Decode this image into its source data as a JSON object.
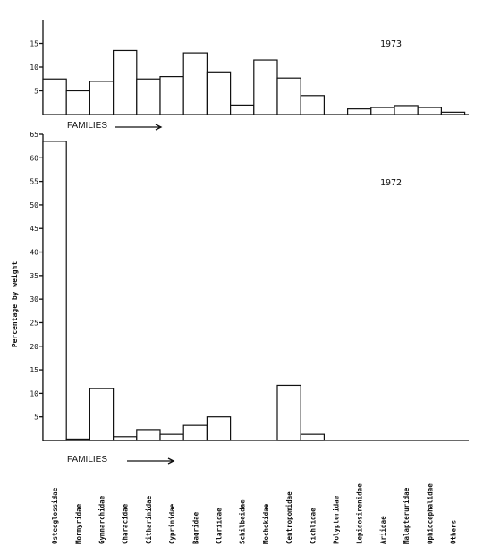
{
  "chart_data": [
    {
      "type": "bar",
      "title": "1973",
      "xlabel": "FAMILIES",
      "ylabel": "",
      "ylim": [
        0,
        20
      ],
      "yticks": [
        5,
        10,
        15
      ],
      "grid": false,
      "categories": [
        "Osteoglossidae",
        "Mormyridae",
        "Gymnarchidae",
        "Characidae",
        "Citharinidae",
        "Cyprinidae",
        "Bagridae",
        "Clariidae",
        "Schilbeidae",
        "Mochokidae",
        "Centropomidae",
        "Cichlidae",
        "Polypteridae",
        "Lepidosirenidae",
        "Ariidae",
        "Malapteruridae",
        "Ophiocephalidae",
        "Others"
      ],
      "values": [
        7.5,
        5,
        7,
        13.5,
        7.5,
        8,
        13,
        9,
        2,
        11.5,
        7.7,
        4,
        0,
        1.2,
        1.5,
        1.9,
        1.5,
        0.5
      ]
    },
    {
      "type": "bar",
      "title": "1972",
      "xlabel": "FAMILIES",
      "ylabel": "Percentage by weight",
      "ylim": [
        0,
        65
      ],
      "yticks": [
        5,
        10,
        15,
        20,
        25,
        30,
        35,
        40,
        45,
        50,
        55,
        60,
        65
      ],
      "grid": false,
      "categories": [
        "Osteoglossidae",
        "Mormyridae",
        "Gymnarchidae",
        "Characidae",
        "Citharinidae",
        "Cyprinidae",
        "Bagridae",
        "Clariidae",
        "Schilbeidae",
        "Mochokidae",
        "Centropomidae",
        "Cichlidae",
        "Polypteridae",
        "Lepidosirenidae",
        "Ariidae",
        "Malapteruridae",
        "Ophiocephalidae",
        "Others"
      ],
      "values": [
        63.5,
        0.3,
        11,
        0.8,
        2.3,
        1.3,
        3.2,
        5,
        0,
        0,
        11.7,
        1.3,
        0,
        0,
        0,
        0,
        0,
        0
      ]
    }
  ]
}
